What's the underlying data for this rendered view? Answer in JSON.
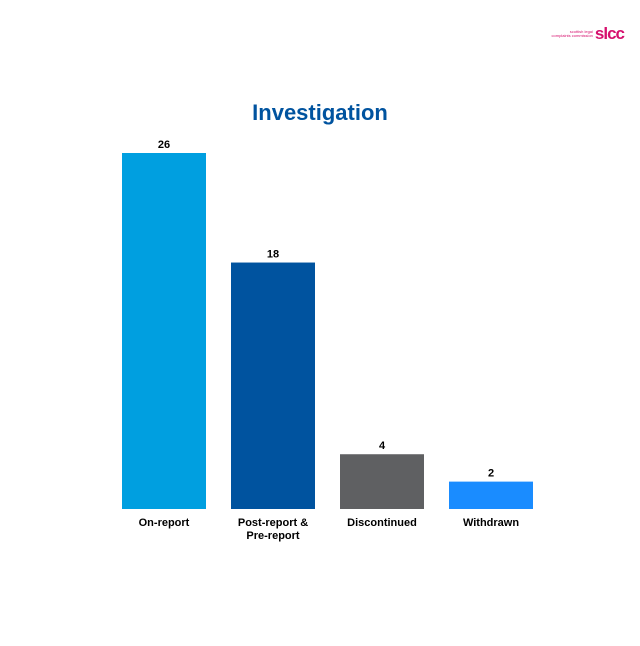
{
  "logo": {
    "line1": "scottish legal",
    "line2": "complaints commission",
    "mark": "slcc"
  },
  "chart_data": {
    "type": "bar",
    "title": "Investigation",
    "categories": [
      [
        "On-report"
      ],
      [
        "Post-report &",
        "Pre-report"
      ],
      [
        "Discontinued"
      ],
      [
        "Withdrawn"
      ]
    ],
    "values": [
      26,
      18,
      4,
      2
    ],
    "colors": [
      "#009fe0",
      "#00539f",
      "#5f6062",
      "#1a8cff"
    ],
    "ylim": [
      0,
      26
    ],
    "grid": false,
    "data_labels": true
  }
}
